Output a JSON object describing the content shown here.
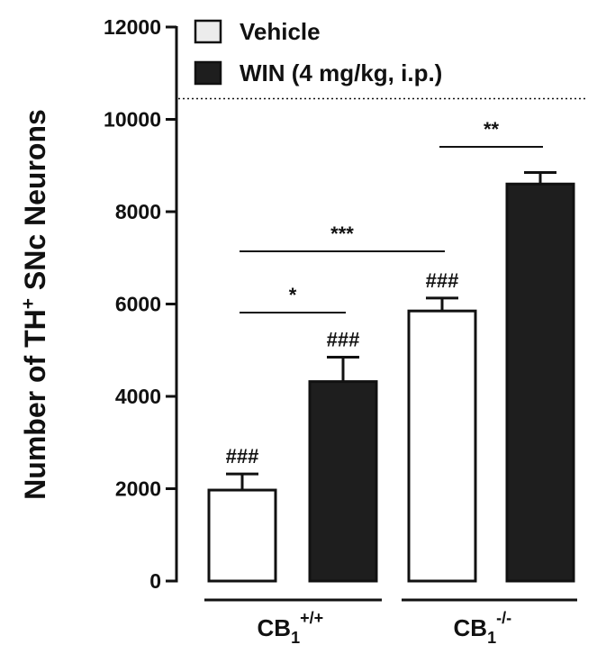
{
  "chart_data": {
    "type": "bar",
    "ylabel": "Number of TH",
    "ylabel_sup": "+",
    "ylabel_tail": " SNc Neurons",
    "ylim": [
      0,
      12000
    ],
    "yticks": [
      "0",
      "2000",
      "4000",
      "6000",
      "8000",
      "10000",
      "12000"
    ],
    "reference_line": 10450,
    "groups": [
      {
        "base": "CB",
        "sub": "1",
        "sup": "+/+"
      },
      {
        "base": "CB",
        "sub": "1",
        "sup": "-/-"
      }
    ],
    "series": [
      {
        "name": "Vehicle",
        "color": "#ffffff",
        "values": [
          1970,
          5850
        ],
        "errors": [
          350,
          280
        ]
      },
      {
        "name": "WIN (4 mg/kg, i.p.)",
        "color": "#1e1e1e",
        "values": [
          4320,
          8600
        ],
        "errors": [
          530,
          250
        ]
      }
    ],
    "bar_marks": [
      [
        "###",
        "###"
      ],
      [
        "###",
        ""
      ]
    ],
    "comparisons": [
      {
        "label": "*",
        "from": [
          0,
          0
        ],
        "to": [
          0,
          1
        ]
      },
      {
        "label": "***",
        "from": [
          0,
          0
        ],
        "to": [
          1,
          0
        ]
      },
      {
        "label": "**",
        "from": [
          1,
          0
        ],
        "to": [
          1,
          1
        ]
      }
    ]
  }
}
